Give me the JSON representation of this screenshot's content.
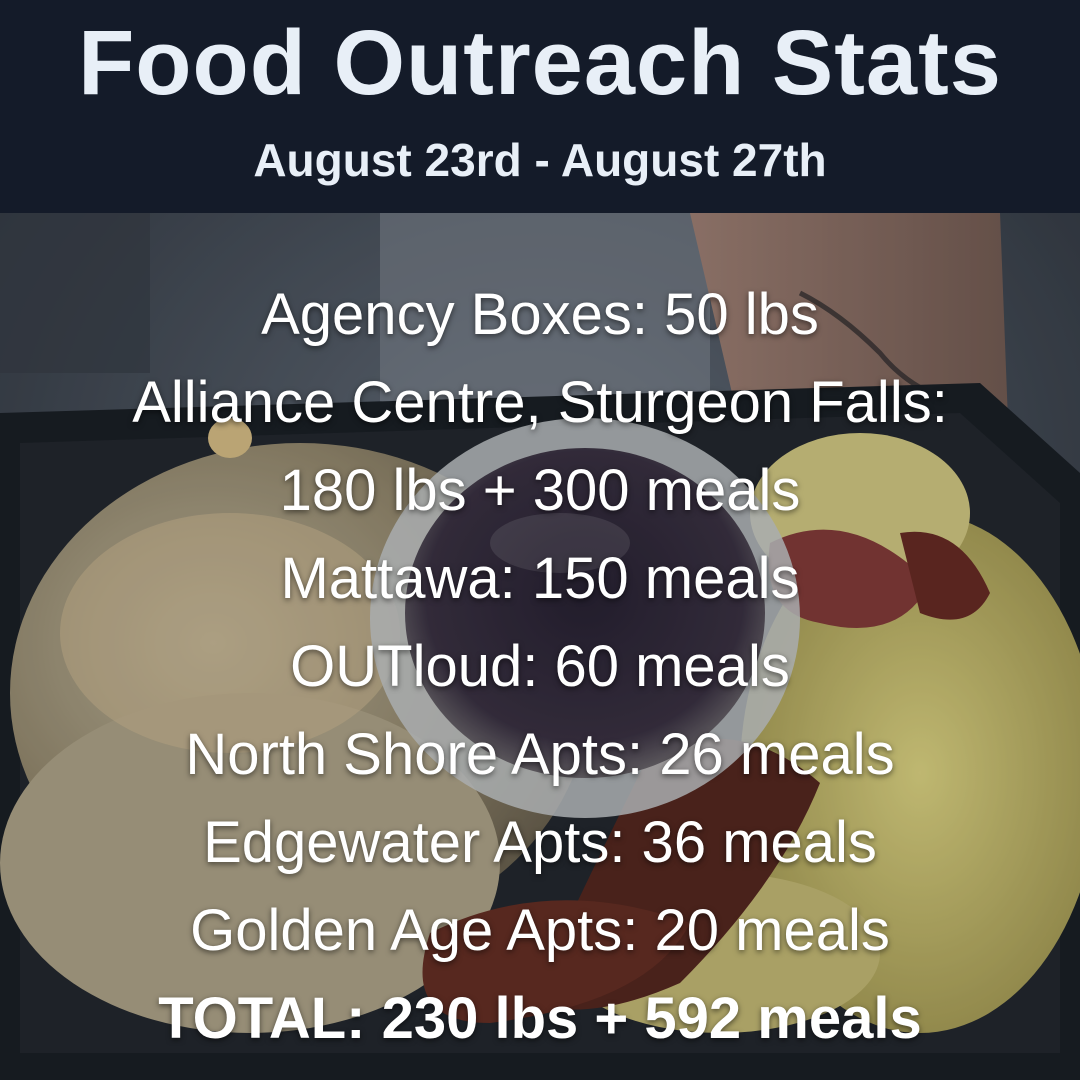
{
  "header": {
    "title": "Food Outreach Stats",
    "subtitle": "August 23rd - August 27th"
  },
  "stats": {
    "lines": [
      "Agency Boxes: 50 lbs",
      "Alliance Centre, Sturgeon Falls:",
      "180 lbs + 300 meals",
      "Mattawa: 150 meals",
      "OUTloud: 60 meals",
      "North Shore Apts: 26 meals",
      "Edgewater Apts: 36 meals",
      "Golden Age Apts: 20 meals"
    ],
    "total": "TOTAL: 230 lbs + 592 meals"
  },
  "colors": {
    "header_bg": "#141b29",
    "header_text": "#e8eff7",
    "body_text": "#ffffff"
  }
}
